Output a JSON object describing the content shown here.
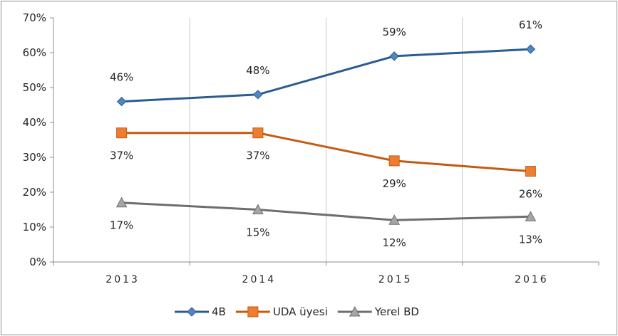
{
  "chart_data": {
    "type": "line",
    "categories": [
      "2013",
      "2014",
      "2015",
      "2016"
    ],
    "ylim": [
      0,
      70
    ],
    "yticks": [
      "0%",
      "10%",
      "20%",
      "30%",
      "40%",
      "50%",
      "60%",
      "70%"
    ],
    "grid": "vertical",
    "legend": "bottom",
    "series": [
      {
        "name": "4B",
        "values": [
          46,
          48,
          59,
          61
        ],
        "labels": [
          "46%",
          "48%",
          "59%",
          "61%"
        ],
        "color": "#2b5c8f",
        "marker_color": "#4f86c6",
        "marker": "diamond",
        "label_pos": "above"
      },
      {
        "name": "UDA üyesi",
        "values": [
          37,
          37,
          29,
          26
        ],
        "labels": [
          "37%",
          "37%",
          "29%",
          "26%"
        ],
        "color": "#c55a11",
        "marker_color": "#ed7d31",
        "marker": "square",
        "label_pos": "below"
      },
      {
        "name": "Yerel BD",
        "values": [
          17,
          15,
          12,
          13
        ],
        "labels": [
          "17%",
          "15%",
          "12%",
          "13%"
        ],
        "color": "#6e6e6e",
        "marker_color": "#a5a5a5",
        "marker": "triangle",
        "label_pos": "below"
      }
    ]
  }
}
